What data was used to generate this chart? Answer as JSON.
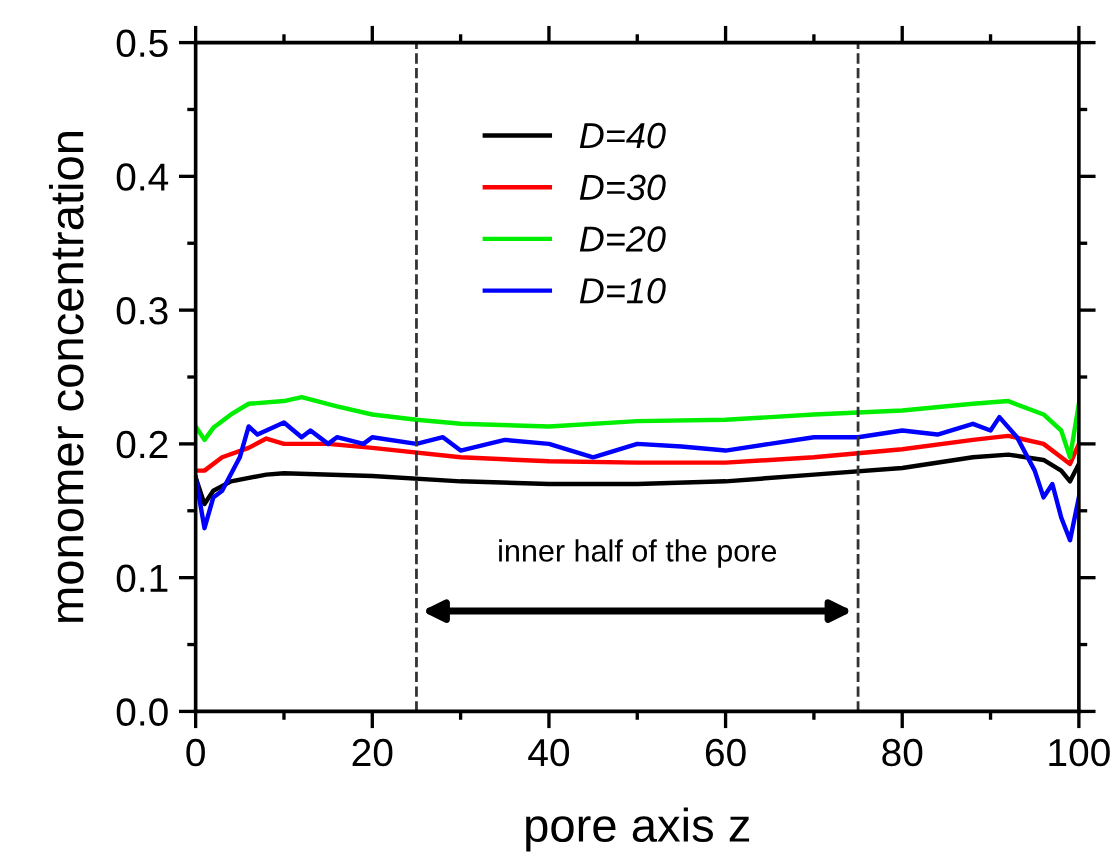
{
  "chart_data": {
    "type": "line",
    "xlabel": "pore axis z",
    "ylabel": "monomer concentration",
    "xlim": [
      0,
      100
    ],
    "xticks": [
      0,
      20,
      40,
      60,
      80,
      100
    ],
    "ylim": [
      0.0,
      0.5
    ],
    "yticks": [
      {
        "value": 0.0,
        "label": "0.0"
      },
      0.1,
      0.2,
      0.3,
      0.4,
      0.5
    ],
    "grid": false,
    "legend": "top",
    "marker": "none",
    "line_style": "solid",
    "annotations": [
      "inner half of the pore"
    ],
    "ref_lines": [
      {
        "axis": "x",
        "value": 25,
        "label": null,
        "color": "#333333",
        "line_style": "dashed"
      },
      {
        "axis": "x",
        "value": 75,
        "label": null,
        "color": "#333333",
        "line_style": "dashed"
      }
    ],
    "series": [
      {
        "name": "D=40",
        "color": "#000000",
        "x": [
          0,
          1,
          2,
          4,
          8,
          10,
          20,
          30,
          40,
          50,
          60,
          70,
          80,
          88,
          92,
          96,
          98,
          99,
          100
        ],
        "values": [
          0.175,
          0.155,
          0.165,
          0.172,
          0.177,
          0.178,
          0.176,
          0.172,
          0.17,
          0.17,
          0.172,
          0.177,
          0.182,
          0.19,
          0.192,
          0.188,
          0.18,
          0.172,
          0.185
        ]
      },
      {
        "name": "D=30",
        "color": "#ff0000",
        "x": [
          0,
          1,
          3,
          6,
          8,
          10,
          15,
          20,
          30,
          40,
          50,
          60,
          70,
          80,
          88,
          92,
          96,
          98,
          99,
          100
        ],
        "values": [
          0.18,
          0.18,
          0.19,
          0.197,
          0.204,
          0.2,
          0.2,
          0.197,
          0.19,
          0.187,
          0.186,
          0.186,
          0.19,
          0.196,
          0.203,
          0.206,
          0.2,
          0.19,
          0.185,
          0.2
        ]
      },
      {
        "name": "D=20",
        "color": "#00ee00",
        "x": [
          0,
          1,
          2,
          4,
          6,
          10,
          12,
          16,
          20,
          25,
          30,
          40,
          50,
          60,
          70,
          80,
          88,
          92,
          96,
          98,
          99,
          100
        ],
        "values": [
          0.213,
          0.203,
          0.212,
          0.222,
          0.23,
          0.232,
          0.235,
          0.228,
          0.222,
          0.218,
          0.215,
          0.213,
          0.217,
          0.218,
          0.222,
          0.225,
          0.23,
          0.232,
          0.222,
          0.21,
          0.19,
          0.23
        ]
      },
      {
        "name": "D=10",
        "color": "#0000ff",
        "x": [
          0,
          1,
          2,
          3,
          5,
          6,
          7,
          10,
          12,
          13,
          15,
          16,
          19,
          20,
          25,
          28,
          30,
          35,
          40,
          45,
          50,
          55,
          60,
          65,
          70,
          75,
          80,
          84,
          88,
          90,
          91,
          93,
          95,
          96,
          97,
          98,
          99,
          100
        ],
        "values": [
          0.175,
          0.137,
          0.16,
          0.165,
          0.19,
          0.213,
          0.207,
          0.216,
          0.205,
          0.21,
          0.2,
          0.205,
          0.2,
          0.205,
          0.2,
          0.205,
          0.195,
          0.203,
          0.2,
          0.19,
          0.2,
          0.198,
          0.195,
          0.2,
          0.205,
          0.205,
          0.21,
          0.207,
          0.215,
          0.21,
          0.22,
          0.205,
          0.18,
          0.16,
          0.17,
          0.145,
          0.128,
          0.16
        ]
      }
    ]
  }
}
